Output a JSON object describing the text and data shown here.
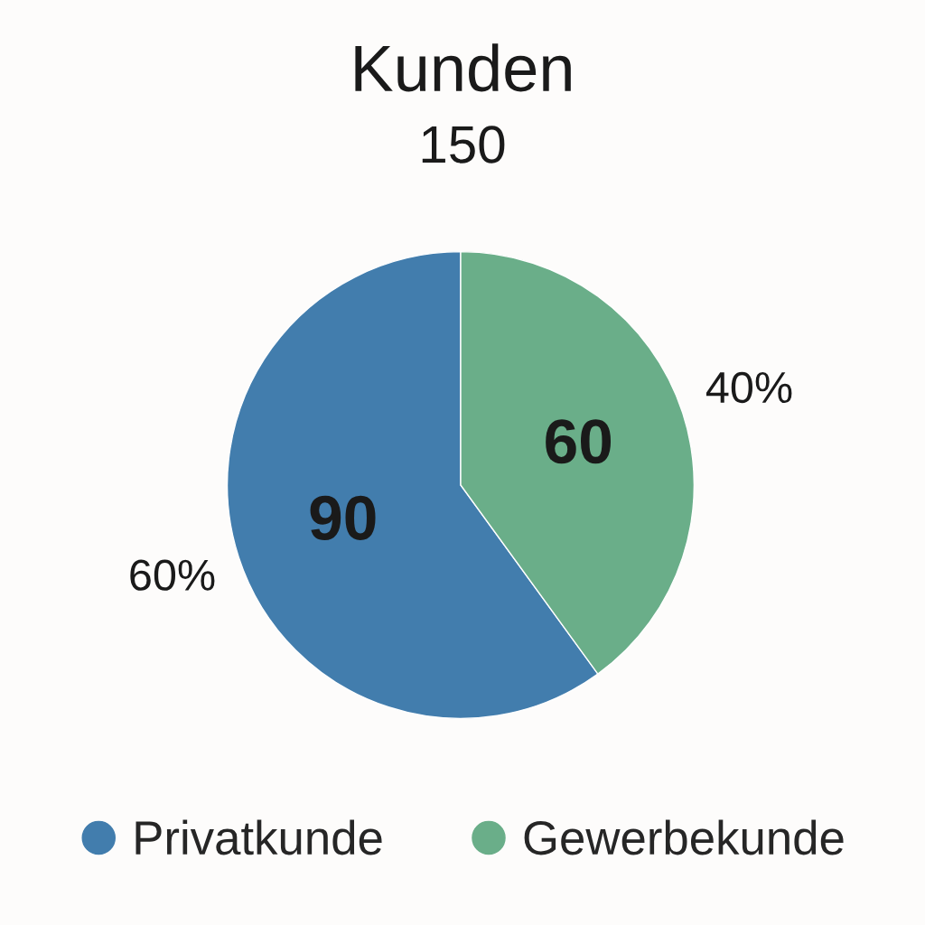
{
  "chart_data": {
    "type": "pie",
    "title": "Kunden",
    "subtitle": "150",
    "categories": [
      "Privatkunde",
      "Gewerbekunde"
    ],
    "values": [
      90,
      60
    ],
    "colors": [
      "#427dad",
      "#6aae89"
    ],
    "data_labels": true,
    "annotations": [
      "60%",
      "40%"
    ],
    "legend": "bottom"
  }
}
